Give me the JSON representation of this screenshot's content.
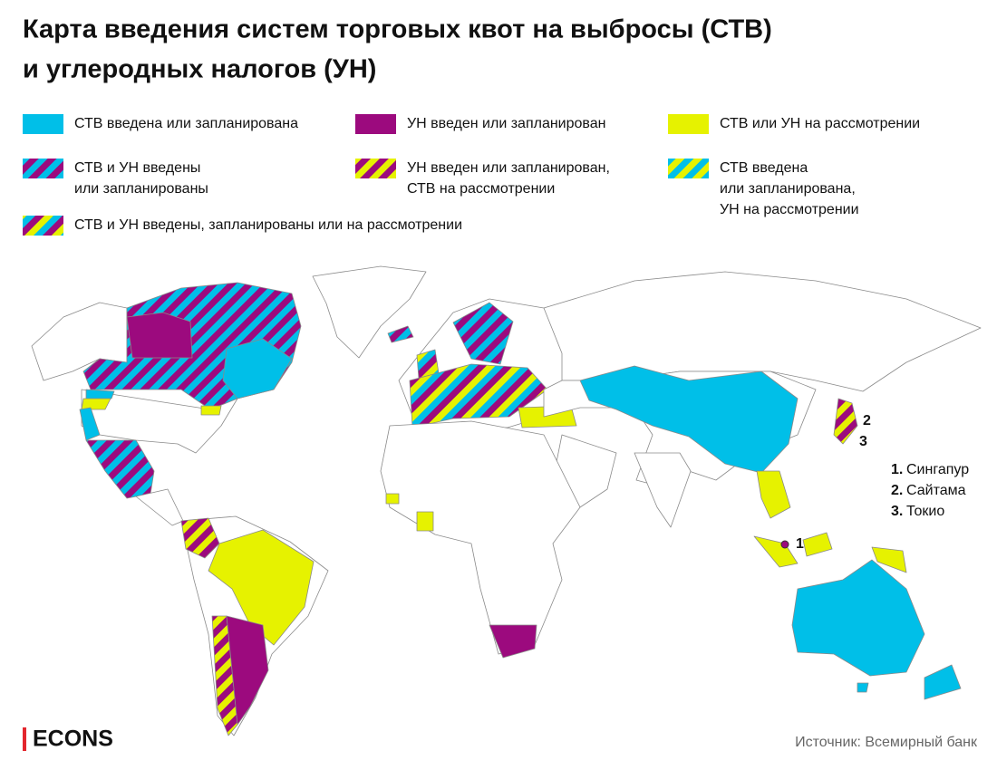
{
  "title": [
    "Карта введения систем торговых квот на выбросы (СТВ)",
    "и углеродных налогов (УН)"
  ],
  "legend": [
    {
      "label": [
        "СТВ введена или запланирована"
      ],
      "colors": [
        "#00bfe8"
      ]
    },
    {
      "label": [
        "УН введен или запланирован"
      ],
      "colors": [
        "#9c0a7e"
      ]
    },
    {
      "label": [
        "СТВ или УН на рассмотрении"
      ],
      "colors": [
        "#e6f200"
      ]
    },
    {
      "label": [
        "СТВ и УН введены",
        "или запланированы"
      ],
      "colors": [
        "#00bfe8",
        "#9c0a7e"
      ]
    },
    {
      "label": [
        "УН введен или запланирован,",
        "СТВ на рассмотрении"
      ],
      "colors": [
        "#9c0a7e",
        "#e6f200"
      ]
    },
    {
      "label": [
        "СТВ введена",
        "или запланирована,",
        "УН на рассмотрении"
      ],
      "colors": [
        "#00bfe8",
        "#e6f200"
      ]
    },
    {
      "label": [
        "СТВ и УН введены, запланированы или на рассмотрении"
      ],
      "colors": [
        "#00bfe8",
        "#9c0a7e",
        "#e6f200"
      ]
    }
  ],
  "map_markers": [
    "1",
    "2",
    "3"
  ],
  "annotations": [
    {
      "number": "1.",
      "label": "Сингапур"
    },
    {
      "number": "2.",
      "label": "Сайтама"
    },
    {
      "number": "3.",
      "label": "Токио"
    }
  ],
  "brand": "ECONS",
  "source": "Источник: Всемирный банк"
}
